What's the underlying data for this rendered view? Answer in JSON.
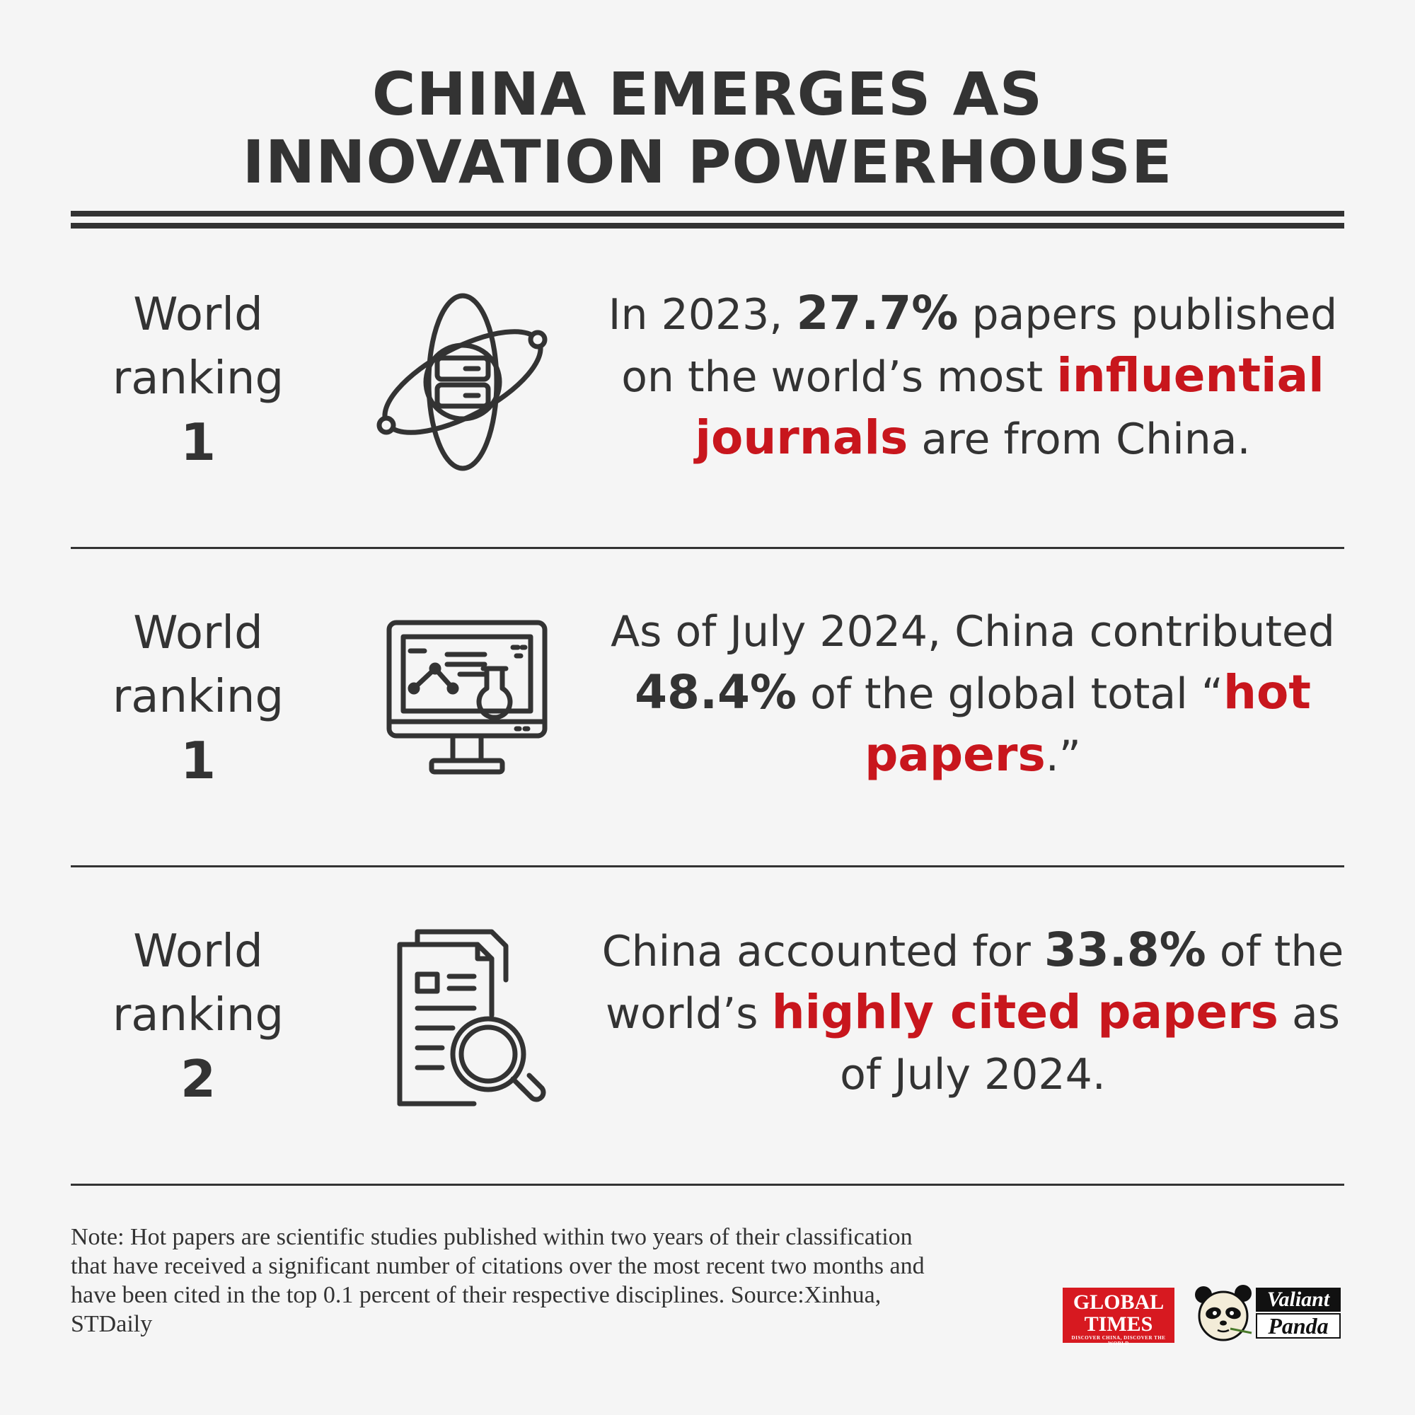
{
  "header": {
    "title_line1": "CHINA EMERGES AS",
    "title_line2": "INNOVATION POWERHOUSE"
  },
  "rows": [
    {
      "rank_label_1": "World",
      "rank_label_2": "ranking",
      "rank_value": "1",
      "icon": "atom-server-icon",
      "text": {
        "t1": "In 2023, ",
        "t2": "27.7%",
        "t3": " papers published on the world’s most ",
        "t4": "influential journals",
        "t5": " are from China."
      }
    },
    {
      "rank_label_1": "World",
      "rank_label_2": "ranking",
      "rank_value": "1",
      "icon": "monitor-lab-icon",
      "text": {
        "t1": "As of July 2024, China contributed ",
        "t2": "48.4%",
        "t3": " of the global total “",
        "t4": "hot papers",
        "t5": ".”"
      }
    },
    {
      "rank_label_1": "World",
      "rank_label_2": "ranking",
      "rank_value": "2",
      "icon": "document-search-icon",
      "text": {
        "t1": "China accounted for ",
        "t2": "33.8%",
        "t3": " of the world’s ",
        "t4": "highly cited papers",
        "t5": " as of July 2024."
      }
    }
  ],
  "footer": {
    "note": "Note: Hot papers are scientific studies published within two years of their classification that have received a significant number of citations over the most recent two months and have been cited in the top 0.1 percent of their respective disciplines. Source:Xinhua, STDaily",
    "logo_gt_line1": "GLOBAL",
    "logo_gt_line2": "TIMES",
    "logo_gt_tagline": "DISCOVER CHINA, DISCOVER THE WORLD",
    "logo_vp_line1": "Valiant",
    "logo_vp_line2": "Panda"
  },
  "colors": {
    "accent": "#c8161d",
    "text": "#333333",
    "background": "#f5f5f5"
  }
}
